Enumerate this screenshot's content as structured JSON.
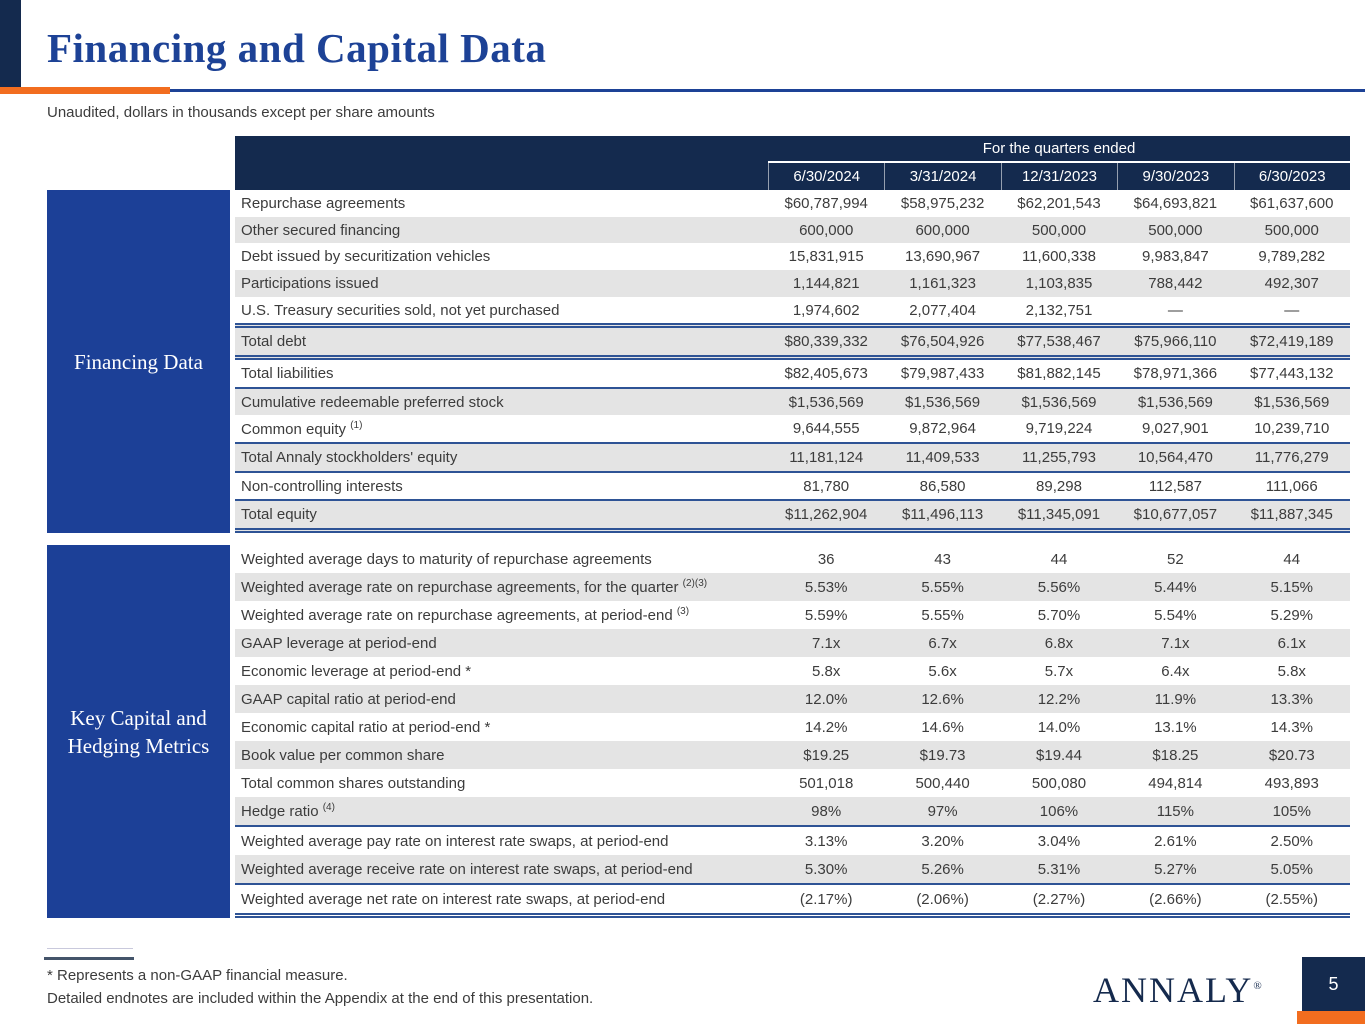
{
  "page": {
    "title": "Financing and Capital Data",
    "subtitle": "Unaudited, dollars in thousands except per share amounts",
    "logo_text": "ANNALY",
    "logo_mark": "®",
    "page_number": "5"
  },
  "colors": {
    "navy": "#142a4e",
    "royal_blue": "#1c4097",
    "title_blue": "#1d4296",
    "accent_orange": "#f26d1f",
    "row_shade_gray": "#e4e4e4",
    "rule_blue": "#2e5395"
  },
  "table": {
    "header_group_label": "For the quarters ended",
    "columns": [
      "6/30/2024",
      "3/31/2024",
      "12/31/2023",
      "9/30/2023",
      "6/30/2023"
    ],
    "sections": [
      {
        "label_lines": [
          "Financing Data"
        ],
        "rows": [
          {
            "label": "Repurchase agreements",
            "sup": "",
            "values": [
              "$60,787,994",
              "$58,975,232",
              "$62,201,543",
              "$64,693,821",
              "$61,637,600"
            ],
            "rule_top": "",
            "rule_bottom": ""
          },
          {
            "label": "Other secured financing",
            "sup": "",
            "values": [
              "600,000",
              "600,000",
              "500,000",
              "500,000",
              "500,000"
            ],
            "rule_top": "",
            "rule_bottom": ""
          },
          {
            "label": "Debt issued by securitization vehicles",
            "sup": "",
            "values": [
              "15,831,915",
              "13,690,967",
              "11,600,338",
              "9,983,847",
              "9,789,282"
            ],
            "rule_top": "",
            "rule_bottom": ""
          },
          {
            "label": "Participations issued",
            "sup": "",
            "values": [
              "1,144,821",
              "1,161,323",
              "1,103,835",
              "788,442",
              "492,307"
            ],
            "rule_top": "",
            "rule_bottom": ""
          },
          {
            "label": "U.S. Treasury securities sold, not yet purchased",
            "sup": "",
            "values": [
              "1,974,602",
              "2,077,404",
              "2,132,751",
              "—",
              "—"
            ],
            "rule_top": "",
            "rule_bottom": ""
          },
          {
            "label": "Total debt",
            "sup": "",
            "values": [
              "$80,339,332",
              "$76,504,926",
              "$77,538,467",
              "$75,966,110",
              "$72,419,189"
            ],
            "rule_top": "double",
            "rule_bottom": "double"
          },
          {
            "label": "Total liabilities",
            "sup": "",
            "values": [
              "$82,405,673",
              "$79,987,433",
              "$81,882,145",
              "$78,971,366",
              "$77,443,132"
            ],
            "rule_top": "",
            "rule_bottom": "solid"
          },
          {
            "label": "Cumulative redeemable preferred stock",
            "sup": "",
            "values": [
              "$1,536,569",
              "$1,536,569",
              "$1,536,569",
              "$1,536,569",
              "$1,536,569"
            ],
            "rule_top": "",
            "rule_bottom": ""
          },
          {
            "label": "Common equity ",
            "sup": "(1)",
            "values": [
              "9,644,555",
              "9,872,964",
              "9,719,224",
              "9,027,901",
              "10,239,710"
            ],
            "rule_top": "",
            "rule_bottom": "solid"
          },
          {
            "label": "Total Annaly stockholders' equity",
            "sup": "",
            "values": [
              "11,181,124",
              "11,409,533",
              "11,255,793",
              "10,564,470",
              "11,776,279"
            ],
            "rule_top": "",
            "rule_bottom": "solid"
          },
          {
            "label": "Non-controlling interests",
            "sup": "",
            "values": [
              "81,780",
              "86,580",
              "89,298",
              "112,587",
              "111,066"
            ],
            "rule_top": "",
            "rule_bottom": "solid"
          },
          {
            "label": "Total equity",
            "sup": "",
            "values": [
              "$11,262,904",
              "$11,496,113",
              "$11,345,091",
              "$10,677,057",
              "$11,887,345"
            ],
            "rule_top": "",
            "rule_bottom": "double"
          }
        ]
      },
      {
        "label_lines": [
          "Key Capital and",
          "Hedging Metrics"
        ],
        "rows": [
          {
            "label": "Weighted average days to maturity of repurchase agreements",
            "sup": "",
            "values": [
              "36",
              "43",
              "44",
              "52",
              "44"
            ],
            "rule_top": "",
            "rule_bottom": ""
          },
          {
            "label": "Weighted average rate on repurchase agreements, for the quarter ",
            "sup": "(2)(3)",
            "values": [
              "5.53%",
              "5.55%",
              "5.56%",
              "5.44%",
              "5.15%"
            ],
            "rule_top": "",
            "rule_bottom": ""
          },
          {
            "label": "Weighted average rate on repurchase agreements, at period-end ",
            "sup": "(3)",
            "values": [
              "5.59%",
              "5.55%",
              "5.70%",
              "5.54%",
              "5.29%"
            ],
            "rule_top": "",
            "rule_bottom": ""
          },
          {
            "label": "GAAP leverage at period-end",
            "sup": "",
            "values": [
              "7.1x",
              "6.7x",
              "6.8x",
              "7.1x",
              "6.1x"
            ],
            "rule_top": "",
            "rule_bottom": ""
          },
          {
            "label": "Economic leverage at period-end *",
            "sup": "",
            "values": [
              "5.8x",
              "5.6x",
              "5.7x",
              "6.4x",
              "5.8x"
            ],
            "rule_top": "",
            "rule_bottom": ""
          },
          {
            "label": "GAAP capital ratio at period-end",
            "sup": "",
            "values": [
              "12.0%",
              "12.6%",
              "12.2%",
              "11.9%",
              "13.3%"
            ],
            "rule_top": "",
            "rule_bottom": ""
          },
          {
            "label": "Economic capital ratio at period-end *",
            "sup": "",
            "values": [
              "14.2%",
              "14.6%",
              "14.0%",
              "13.1%",
              "14.3%"
            ],
            "rule_top": "",
            "rule_bottom": ""
          },
          {
            "label": "Book value per common share",
            "sup": "",
            "values": [
              "$19.25",
              "$19.73",
              "$19.44",
              "$18.25",
              "$20.73"
            ],
            "rule_top": "",
            "rule_bottom": ""
          },
          {
            "label": "Total common shares outstanding",
            "sup": "",
            "values": [
              "501,018",
              "500,440",
              "500,080",
              "494,814",
              "493,893"
            ],
            "rule_top": "",
            "rule_bottom": ""
          },
          {
            "label": "Hedge ratio ",
            "sup": "(4)",
            "values": [
              "98%",
              "97%",
              "106%",
              "115%",
              "105%"
            ],
            "rule_top": "",
            "rule_bottom": "solid"
          },
          {
            "label": "Weighted average pay rate on interest rate swaps, at period-end",
            "sup": "",
            "values": [
              "3.13%",
              "3.20%",
              "3.04%",
              "2.61%",
              "2.50%"
            ],
            "rule_top": "",
            "rule_bottom": ""
          },
          {
            "label": "Weighted average receive rate on interest rate swaps, at period-end",
            "sup": "",
            "values": [
              "5.30%",
              "5.26%",
              "5.31%",
              "5.27%",
              "5.05%"
            ],
            "rule_top": "",
            "rule_bottom": "solid"
          },
          {
            "label": "Weighted average net rate on interest rate swaps, at period-end",
            "sup": "",
            "values": [
              "(2.17%)",
              "(2.06%)",
              "(2.27%)",
              "(2.66%)",
              "(2.55%)"
            ],
            "rule_top": "",
            "rule_bottom": "double"
          }
        ]
      }
    ]
  },
  "footnotes": [
    "* Represents a non-GAAP financial measure.",
    "Detailed endnotes are included within the Appendix at the end of this presentation."
  ]
}
